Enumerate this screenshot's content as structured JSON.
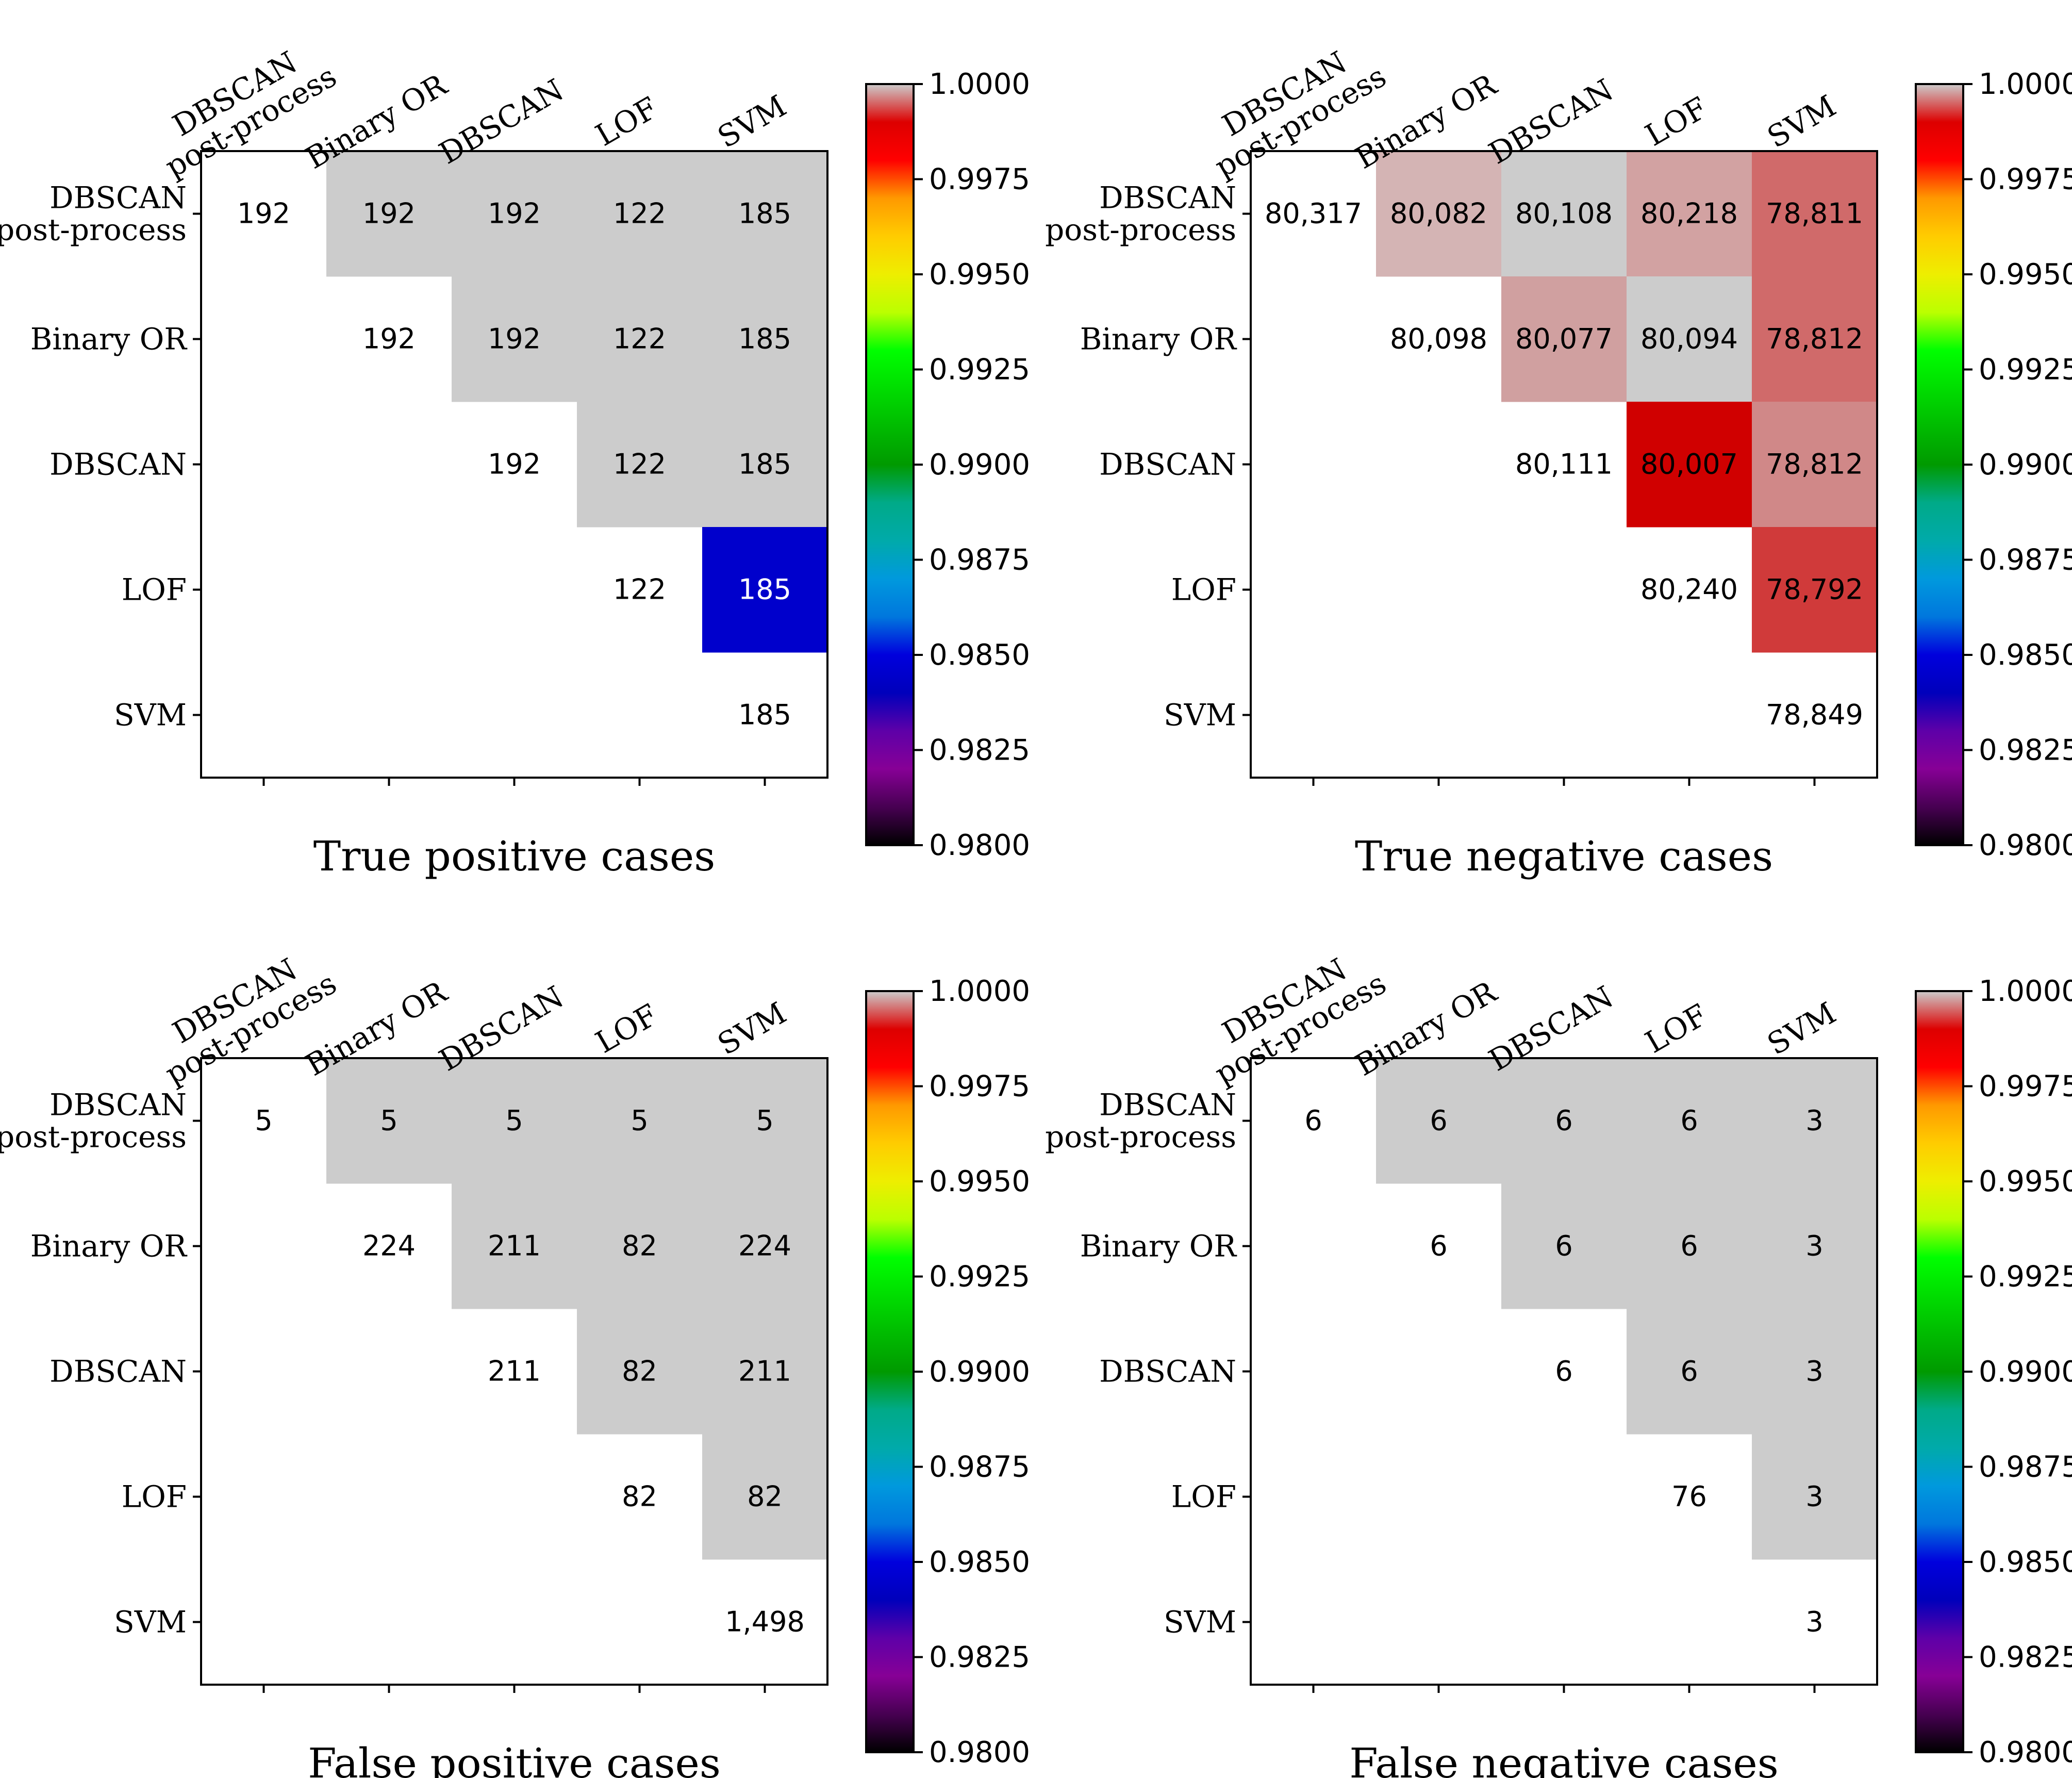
{
  "figure": {
    "colorbar": {
      "ticks": [
        "1.0000",
        "0.9975",
        "0.9950",
        "0.9925",
        "0.9900",
        "0.9875",
        "0.9850",
        "0.9825",
        "0.9800"
      ],
      "vmin": 0.98,
      "vmax": 1.0,
      "colormap": "nipy_spectral"
    },
    "empty_cell_color": "#cccccc",
    "labels": [
      "DBSCAN\npost-process",
      "Binary OR",
      "DBSCAN",
      "LOF",
      "SVM"
    ]
  },
  "chart_data": [
    {
      "type": "heatmap",
      "title": "True positive cases",
      "rows": [
        "DBSCAN post-process",
        "Binary OR",
        "DBSCAN",
        "LOF",
        "SVM"
      ],
      "cols": [
        "DBSCAN post-process",
        "Binary OR",
        "DBSCAN",
        "LOF",
        "SVM"
      ],
      "values": [
        [
          "192",
          "192",
          "192",
          "122",
          "185"
        ],
        [
          null,
          "192",
          "192",
          "122",
          "185"
        ],
        [
          null,
          null,
          "192",
          "122",
          "185"
        ],
        [
          null,
          null,
          null,
          "122",
          "185"
        ],
        [
          null,
          null,
          null,
          null,
          "185"
        ]
      ],
      "cell_colors": [
        [
          null,
          "#cccccc",
          "#cccccc",
          "#cccccc",
          "#cccccc"
        ],
        [
          null,
          null,
          "#cccccc",
          "#cccccc",
          "#cccccc"
        ],
        [
          null,
          null,
          null,
          "#cccccc",
          "#cccccc"
        ],
        [
          null,
          null,
          null,
          null,
          "#0000cc"
        ],
        [
          null,
          null,
          null,
          null,
          null
        ]
      ]
    },
    {
      "type": "heatmap",
      "title": "True negative cases",
      "rows": [
        "DBSCAN post-process",
        "Binary OR",
        "DBSCAN",
        "LOF",
        "SVM"
      ],
      "cols": [
        "DBSCAN post-process",
        "Binary OR",
        "DBSCAN",
        "LOF",
        "SVM"
      ],
      "values": [
        [
          "80,317",
          "80,082",
          "80,108",
          "80,218",
          "78,811"
        ],
        [
          null,
          "80,098",
          "80,077",
          "80,094",
          "78,812"
        ],
        [
          null,
          null,
          "80,111",
          "80,007",
          "78,812"
        ],
        [
          null,
          null,
          null,
          "80,240",
          "78,792"
        ],
        [
          null,
          null,
          null,
          null,
          "78,849"
        ]
      ],
      "cell_colors": [
        [
          null,
          "#d4b4b4",
          "#cccccc",
          "#d2a2a2",
          "#d06a6a"
        ],
        [
          null,
          null,
          "#d0a0a0",
          "#cccccc",
          "#d06a6a"
        ],
        [
          null,
          null,
          null,
          "#d00000",
          "#d08888"
        ],
        [
          null,
          null,
          null,
          null,
          "#d03a3a"
        ],
        [
          null,
          null,
          null,
          null,
          null
        ]
      ]
    },
    {
      "type": "heatmap",
      "title": "False positive cases",
      "rows": [
        "DBSCAN post-process",
        "Binary OR",
        "DBSCAN",
        "LOF",
        "SVM"
      ],
      "cols": [
        "DBSCAN post-process",
        "Binary OR",
        "DBSCAN",
        "LOF",
        "SVM"
      ],
      "values": [
        [
          "5",
          "5",
          "5",
          "5",
          "5"
        ],
        [
          null,
          "224",
          "211",
          "82",
          "224"
        ],
        [
          null,
          null,
          "211",
          "82",
          "211"
        ],
        [
          null,
          null,
          null,
          "82",
          "82"
        ],
        [
          null,
          null,
          null,
          null,
          "1,498"
        ]
      ],
      "cell_colors": [
        [
          null,
          "#cccccc",
          "#cccccc",
          "#cccccc",
          "#cccccc"
        ],
        [
          null,
          null,
          "#cccccc",
          "#cccccc",
          "#cccccc"
        ],
        [
          null,
          null,
          null,
          "#cccccc",
          "#cccccc"
        ],
        [
          null,
          null,
          null,
          null,
          "#cccccc"
        ],
        [
          null,
          null,
          null,
          null,
          null
        ]
      ]
    },
    {
      "type": "heatmap",
      "title": "False negative cases",
      "rows": [
        "DBSCAN post-process",
        "Binary OR",
        "DBSCAN",
        "LOF",
        "SVM"
      ],
      "cols": [
        "DBSCAN post-process",
        "Binary OR",
        "DBSCAN",
        "LOF",
        "SVM"
      ],
      "values": [
        [
          "6",
          "6",
          "6",
          "6",
          "3"
        ],
        [
          null,
          "6",
          "6",
          "6",
          "3"
        ],
        [
          null,
          null,
          "6",
          "6",
          "3"
        ],
        [
          null,
          null,
          null,
          "76",
          "3"
        ],
        [
          null,
          null,
          null,
          null,
          "3"
        ]
      ],
      "cell_colors": [
        [
          null,
          "#cccccc",
          "#cccccc",
          "#cccccc",
          "#cccccc"
        ],
        [
          null,
          null,
          "#cccccc",
          "#cccccc",
          "#cccccc"
        ],
        [
          null,
          null,
          null,
          "#cccccc",
          "#cccccc"
        ],
        [
          null,
          null,
          null,
          null,
          "#cccccc"
        ],
        [
          null,
          null,
          null,
          null,
          null
        ]
      ]
    }
  ]
}
